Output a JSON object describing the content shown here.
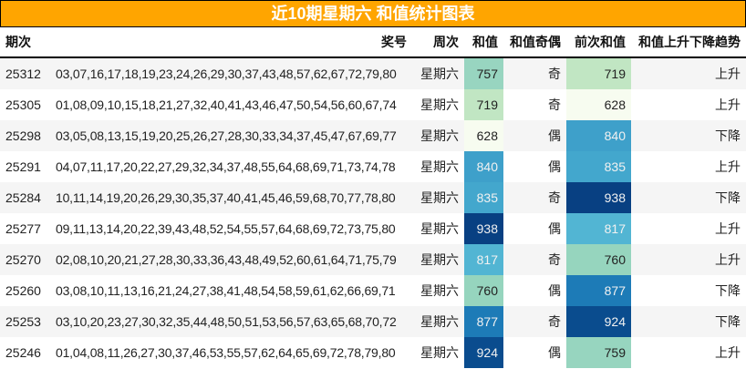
{
  "title": "近10期星期六 和值统计图表",
  "headers": [
    "期次",
    "奖号",
    "周次",
    "和值",
    "和值奇偶",
    "前次和值",
    "和值上升下降趋势"
  ],
  "rows": [
    {
      "issue": "25312",
      "numbers": "03,07,16,17,18,19,23,24,26,29,30,37,43,48,57,62,67,72,79,80",
      "weekday": "星期六",
      "sum": "757",
      "parity": "奇",
      "prev_sum": "719",
      "trend": "上升"
    },
    {
      "issue": "25305",
      "numbers": "01,08,09,10,15,18,21,27,32,40,41,43,46,47,50,54,56,60,67,74",
      "weekday": "星期六",
      "sum": "719",
      "parity": "奇",
      "prev_sum": "628",
      "trend": "上升"
    },
    {
      "issue": "25298",
      "numbers": "03,05,08,13,15,19,20,25,26,27,28,30,33,34,37,45,47,67,69,77",
      "weekday": "星期六",
      "sum": "628",
      "parity": "偶",
      "prev_sum": "840",
      "trend": "下降"
    },
    {
      "issue": "25291",
      "numbers": "04,07,11,17,20,22,27,29,32,34,37,48,55,64,68,69,71,73,74,78",
      "weekday": "星期六",
      "sum": "840",
      "parity": "偶",
      "prev_sum": "835",
      "trend": "上升"
    },
    {
      "issue": "25284",
      "numbers": "10,11,14,19,20,26,29,30,35,37,40,41,45,46,59,68,70,77,78,80",
      "weekday": "星期六",
      "sum": "835",
      "parity": "奇",
      "prev_sum": "938",
      "trend": "下降"
    },
    {
      "issue": "25277",
      "numbers": "09,11,13,14,20,22,39,43,48,52,54,55,57,64,68,69,72,73,75,80",
      "weekday": "星期六",
      "sum": "938",
      "parity": "偶",
      "prev_sum": "817",
      "trend": "上升"
    },
    {
      "issue": "25270",
      "numbers": "02,08,10,20,21,27,28,30,33,36,43,48,49,52,60,61,64,71,75,79",
      "weekday": "星期六",
      "sum": "817",
      "parity": "奇",
      "prev_sum": "760",
      "trend": "上升"
    },
    {
      "issue": "25260",
      "numbers": "03,08,10,11,13,16,21,24,27,38,41,48,54,58,59,61,62,66,69,71",
      "weekday": "星期六",
      "sum": "760",
      "parity": "偶",
      "prev_sum": "877",
      "trend": "下降"
    },
    {
      "issue": "25253",
      "numbers": "03,10,20,23,27,30,32,35,44,48,50,51,53,56,57,63,65,68,70,72",
      "weekday": "星期六",
      "sum": "877",
      "parity": "奇",
      "prev_sum": "924",
      "trend": "下降"
    },
    {
      "issue": "25246",
      "numbers": "01,04,08,11,26,27,30,37,46,53,55,57,62,64,65,69,72,78,79,80",
      "weekday": "星期六",
      "sum": "924",
      "parity": "偶",
      "prev_sum": "759",
      "trend": "上升"
    }
  ],
  "colors": {
    "title_bg": "#ffa500",
    "heat": {
      "628": "#f7fcf0",
      "719": "#c1e6c3",
      "757": "#98d5c0",
      "759": "#97d5bf",
      "760": "#96d5be",
      "817": "#52b5d3",
      "835": "#43a7cd",
      "840": "#3ea0ca",
      "877": "#1d7bb7",
      "924": "#0a4c8e",
      "938": "#084082"
    }
  }
}
